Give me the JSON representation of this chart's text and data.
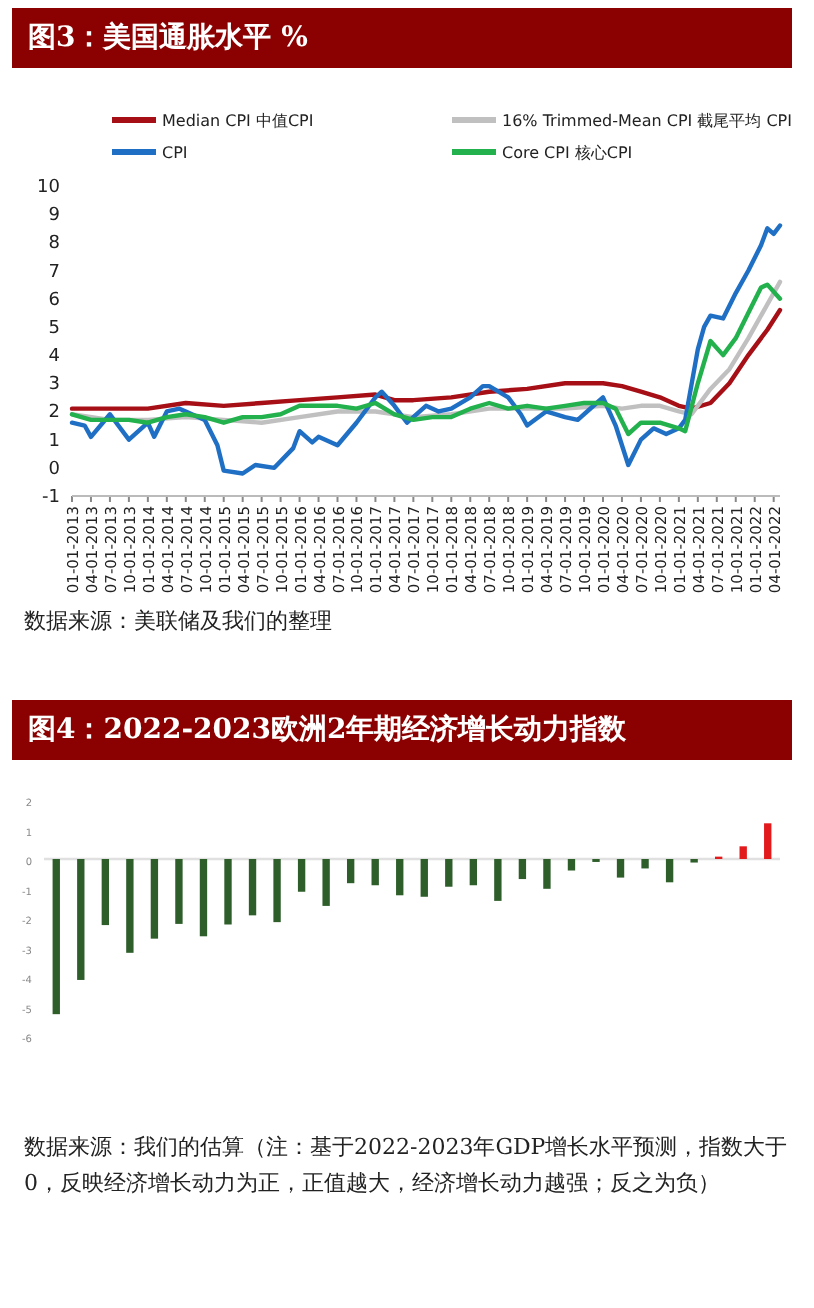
{
  "chart_data": [
    {
      "type": "line",
      "title": "图3：美国通胀水平 %",
      "legend": "top",
      "xlim": [
        "2013-01",
        "2022-05"
      ],
      "ylim": [
        -1,
        10
      ],
      "yticks": [
        -1,
        0,
        1,
        2,
        3,
        4,
        5,
        6,
        7,
        8,
        9,
        10
      ],
      "xticks": [
        {
          "value": "2013-01",
          "label": "01-01-2013"
        },
        {
          "value": "2013-04",
          "label": "04-01-2013"
        },
        {
          "value": "2013-07",
          "label": "07-01-2013"
        },
        {
          "value": "2013-10",
          "label": "10-01-2013"
        },
        {
          "value": "2014-01",
          "label": "01-01-2014"
        },
        {
          "value": "2014-04",
          "label": "04-01-2014"
        },
        {
          "value": "2014-07",
          "label": "07-01-2014"
        },
        {
          "value": "2014-10",
          "label": "10-01-2014"
        },
        {
          "value": "2015-01",
          "label": "01-01-2015"
        },
        {
          "value": "2015-04",
          "label": "04-01-2015"
        },
        {
          "value": "2015-07",
          "label": "07-01-2015"
        },
        {
          "value": "2015-10",
          "label": "10-01-2015"
        },
        {
          "value": "2016-01",
          "label": "01-01-2016"
        },
        {
          "value": "2016-04",
          "label": "04-01-2016"
        },
        {
          "value": "2016-07",
          "label": "07-01-2016"
        },
        {
          "value": "2016-10",
          "label": "10-01-2016"
        },
        {
          "value": "2017-01",
          "label": "01-01-2017"
        },
        {
          "value": "2017-04",
          "label": "04-01-2017"
        },
        {
          "value": "2017-07",
          "label": "07-01-2017"
        },
        {
          "value": "2017-10",
          "label": "10-01-2017"
        },
        {
          "value": "2018-01",
          "label": "01-01-2018"
        },
        {
          "value": "2018-04",
          "label": "04-01-2018"
        },
        {
          "value": "2018-07",
          "label": "07-01-2018"
        },
        {
          "value": "2018-10",
          "label": "10-01-2018"
        },
        {
          "value": "2019-01",
          "label": "01-01-2019"
        },
        {
          "value": "2019-04",
          "label": "04-01-2019"
        },
        {
          "value": "2019-07",
          "label": "07-01-2019"
        },
        {
          "value": "2019-10",
          "label": "10-01-2019"
        },
        {
          "value": "2020-01",
          "label": "01-01-2020"
        },
        {
          "value": "2020-04",
          "label": "04-01-2020"
        },
        {
          "value": "2020-07",
          "label": "07-01-2020"
        },
        {
          "value": "2020-10",
          "label": "10-01-2020"
        },
        {
          "value": "2021-01",
          "label": "01-01-2021"
        },
        {
          "value": "2021-04",
          "label": "04-01-2021"
        },
        {
          "value": "2021-07",
          "label": "07-01-2021"
        },
        {
          "value": "2021-10",
          "label": "10-01-2021"
        },
        {
          "value": "2022-01",
          "label": "01-01-2022"
        },
        {
          "value": "2022-04",
          "label": "04-01-2022"
        }
      ],
      "series": [
        {
          "name": "Median CPI 中值CPI",
          "color": "#a50f15",
          "x": [
            "2013-01",
            "2014-01",
            "2014-07",
            "2015-01",
            "2015-07",
            "2016-01",
            "2016-07",
            "2017-01",
            "2017-04",
            "2017-07",
            "2018-01",
            "2018-07",
            "2019-01",
            "2019-07",
            "2020-01",
            "2020-04",
            "2020-07",
            "2020-10",
            "2021-01",
            "2021-03",
            "2021-06",
            "2021-09",
            "2021-12",
            "2022-03",
            "2022-05"
          ],
          "values": [
            2.1,
            2.1,
            2.3,
            2.2,
            2.3,
            2.4,
            2.5,
            2.6,
            2.4,
            2.4,
            2.5,
            2.7,
            2.8,
            3.0,
            3.0,
            2.9,
            2.7,
            2.5,
            2.2,
            2.1,
            2.3,
            3.0,
            4.0,
            4.9,
            5.6
          ]
        },
        {
          "name": "16% Trimmed-Mean CPI 截尾平均 CPI",
          "color": "#c0c0c0",
          "x": [
            "2013-01",
            "2013-07",
            "2014-01",
            "2014-07",
            "2015-01",
            "2015-07",
            "2016-01",
            "2016-07",
            "2017-01",
            "2017-07",
            "2018-01",
            "2018-07",
            "2019-01",
            "2019-07",
            "2020-01",
            "2020-04",
            "2020-07",
            "2020-10",
            "2021-01",
            "2021-03",
            "2021-06",
            "2021-09",
            "2021-12",
            "2022-03",
            "2022-05"
          ],
          "values": [
            1.9,
            1.7,
            1.7,
            1.8,
            1.7,
            1.6,
            1.8,
            2.0,
            2.0,
            1.8,
            1.9,
            2.1,
            2.1,
            2.1,
            2.2,
            2.1,
            2.2,
            2.2,
            2.0,
            1.9,
            2.8,
            3.5,
            4.6,
            5.8,
            6.6
          ]
        },
        {
          "name": "CPI",
          "color": "#1f6fc5",
          "x": [
            "2013-01",
            "2013-03",
            "2013-04",
            "2013-07",
            "2013-10",
            "2014-01",
            "2014-02",
            "2014-04",
            "2014-06",
            "2014-07",
            "2014-10",
            "2014-12",
            "2015-01",
            "2015-04",
            "2015-06",
            "2015-09",
            "2015-12",
            "2016-01",
            "2016-03",
            "2016-04",
            "2016-07",
            "2016-10",
            "2017-01",
            "2017-02",
            "2017-04",
            "2017-06",
            "2017-09",
            "2017-11",
            "2018-01",
            "2018-04",
            "2018-06",
            "2018-07",
            "2018-10",
            "2018-12",
            "2019-01",
            "2019-04",
            "2019-07",
            "2019-09",
            "2019-12",
            "2020-01",
            "2020-03",
            "2020-05",
            "2020-07",
            "2020-09",
            "2020-11",
            "2021-01",
            "2021-02",
            "2021-04",
            "2021-05",
            "2021-06",
            "2021-08",
            "2021-10",
            "2021-12",
            "2022-02",
            "2022-03",
            "2022-04",
            "2022-05"
          ],
          "values": [
            1.6,
            1.5,
            1.1,
            1.9,
            1.0,
            1.6,
            1.1,
            2.0,
            2.1,
            2.0,
            1.7,
            0.8,
            -0.1,
            -0.2,
            0.1,
            0.0,
            0.7,
            1.3,
            0.9,
            1.1,
            0.8,
            1.6,
            2.5,
            2.7,
            2.2,
            1.6,
            2.2,
            2.0,
            2.1,
            2.5,
            2.9,
            2.9,
            2.5,
            1.9,
            1.5,
            2.0,
            1.8,
            1.7,
            2.3,
            2.5,
            1.5,
            0.1,
            1.0,
            1.4,
            1.2,
            1.4,
            1.7,
            4.2,
            5.0,
            5.4,
            5.3,
            6.2,
            7.0,
            7.9,
            8.5,
            8.3,
            8.6
          ]
        },
        {
          "name": "Core CPI 核心CPI",
          "color": "#22b14c",
          "x": [
            "2013-01",
            "2013-04",
            "2013-07",
            "2013-10",
            "2014-01",
            "2014-04",
            "2014-07",
            "2014-10",
            "2015-01",
            "2015-04",
            "2015-07",
            "2015-10",
            "2016-01",
            "2016-04",
            "2016-07",
            "2016-10",
            "2017-01",
            "2017-04",
            "2017-07",
            "2017-10",
            "2018-01",
            "2018-04",
            "2018-07",
            "2018-10",
            "2019-01",
            "2019-04",
            "2019-07",
            "2019-10",
            "2020-01",
            "2020-03",
            "2020-05",
            "2020-07",
            "2020-10",
            "2021-01",
            "2021-02",
            "2021-04",
            "2021-06",
            "2021-08",
            "2021-10",
            "2021-12",
            "2022-02",
            "2022-03",
            "2022-05"
          ],
          "values": [
            1.9,
            1.7,
            1.7,
            1.7,
            1.6,
            1.8,
            1.9,
            1.8,
            1.6,
            1.8,
            1.8,
            1.9,
            2.2,
            2.2,
            2.2,
            2.1,
            2.3,
            1.9,
            1.7,
            1.8,
            1.8,
            2.1,
            2.3,
            2.1,
            2.2,
            2.1,
            2.2,
            2.3,
            2.3,
            2.1,
            1.2,
            1.6,
            1.6,
            1.4,
            1.3,
            3.0,
            4.5,
            4.0,
            4.6,
            5.5,
            6.4,
            6.5,
            6.0
          ]
        }
      ],
      "annotations": [
        "数据来源：美联储及我们的整理"
      ]
    },
    {
      "type": "bar",
      "title": "图4：2022-2023欧洲2年期经济增长动力指数",
      "ylim": [
        -6,
        2
      ],
      "yticks": [
        -6,
        -5,
        -4,
        -3,
        -2,
        -1,
        0,
        1,
        2
      ],
      "categories": [
        null,
        null,
        null,
        null,
        null,
        null,
        null,
        null,
        null,
        null,
        null,
        null,
        null,
        null,
        null,
        null,
        null,
        null,
        null,
        null,
        null,
        null,
        null,
        null,
        null,
        null,
        null,
        null,
        null,
        null
      ],
      "values": [
        -5.26,
        -4.1,
        -2.24,
        -3.18,
        -2.7,
        -2.2,
        -2.62,
        -2.22,
        -1.91,
        -2.14,
        -1.11,
        -1.59,
        -0.82,
        -0.89,
        -1.23,
        -1.28,
        -0.94,
        -0.89,
        -1.42,
        -0.68,
        -1.01,
        -0.39,
        -0.1,
        -0.63,
        -0.32,
        -0.79,
        -0.12,
        0.08,
        0.43,
        1.21
      ],
      "colors": [
        "#2e5e2a",
        "#2e5e2a",
        "#2e5e2a",
        "#2e5e2a",
        "#2e5e2a",
        "#2e5e2a",
        "#2e5e2a",
        "#2e5e2a",
        "#2e5e2a",
        "#2e5e2a",
        "#2e5e2a",
        "#2e5e2a",
        "#2e5e2a",
        "#2e5e2a",
        "#2e5e2a",
        "#2e5e2a",
        "#2e5e2a",
        "#2e5e2a",
        "#2e5e2a",
        "#2e5e2a",
        "#2e5e2a",
        "#2e5e2a",
        "#2e5e2a",
        "#2e5e2a",
        "#2e5e2a",
        "#2e5e2a",
        "#2e5e2a",
        "#e31a1c",
        "#e31a1c",
        "#e31a1c"
      ],
      "annotations": [
        "数据来源：我们的估算（注：基于2022-2023年GDP增长水平预测，指数大于0，反映经济增长动力为正，正值越大，经济增长动力越强；反之为负）"
      ]
    }
  ]
}
